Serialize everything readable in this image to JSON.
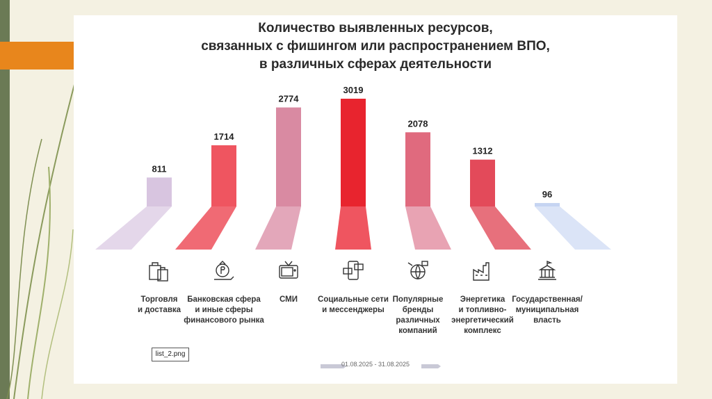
{
  "chart_data": {
    "type": "bar",
    "title_lines": [
      "Количество выявленных ресурсов,",
      "связанных с фишингом или распространением ВПО,",
      "в различных сферах деятельности"
    ],
    "categories": [
      [
        "Торговля",
        "и доставка"
      ],
      [
        "Банковская сфера",
        "и иные сферы",
        "финансового рынка"
      ],
      [
        "СМИ"
      ],
      [
        "Социальные сети",
        "и мессенджеры"
      ],
      [
        "Популярные",
        "бренды",
        "различных",
        "компаний"
      ],
      [
        "Энергетика",
        "и топливно-",
        "энергетический",
        "комплекс"
      ],
      [
        "Государственная/",
        "муниципальная",
        "власть"
      ]
    ],
    "values": [
      811,
      1714,
      2774,
      3019,
      2078,
      1312,
      96
    ],
    "colors": [
      "#d8c5e0",
      "#ef5560",
      "#d98aa2",
      "#e8242e",
      "#e06a7e",
      "#e34a5a",
      "#c5d4f2"
    ],
    "base_colors": [
      "#e4d7ea",
      "#f06a74",
      "#e3a7ba",
      "#ef5560",
      "#e8a3b3",
      "#e7707c",
      "#dbe4f7"
    ],
    "icons": [
      "shopping-bags-icon",
      "money-bag-icon",
      "tv-icon",
      "phone-chat-icon",
      "globe-brands-icon",
      "factory-icon",
      "government-building-icon"
    ],
    "ylim": [
      0,
      3019
    ],
    "grid": false,
    "legend": "none",
    "date_range": "01.08.2025 - 31.08.2025"
  },
  "file_tag": "list_2.png"
}
